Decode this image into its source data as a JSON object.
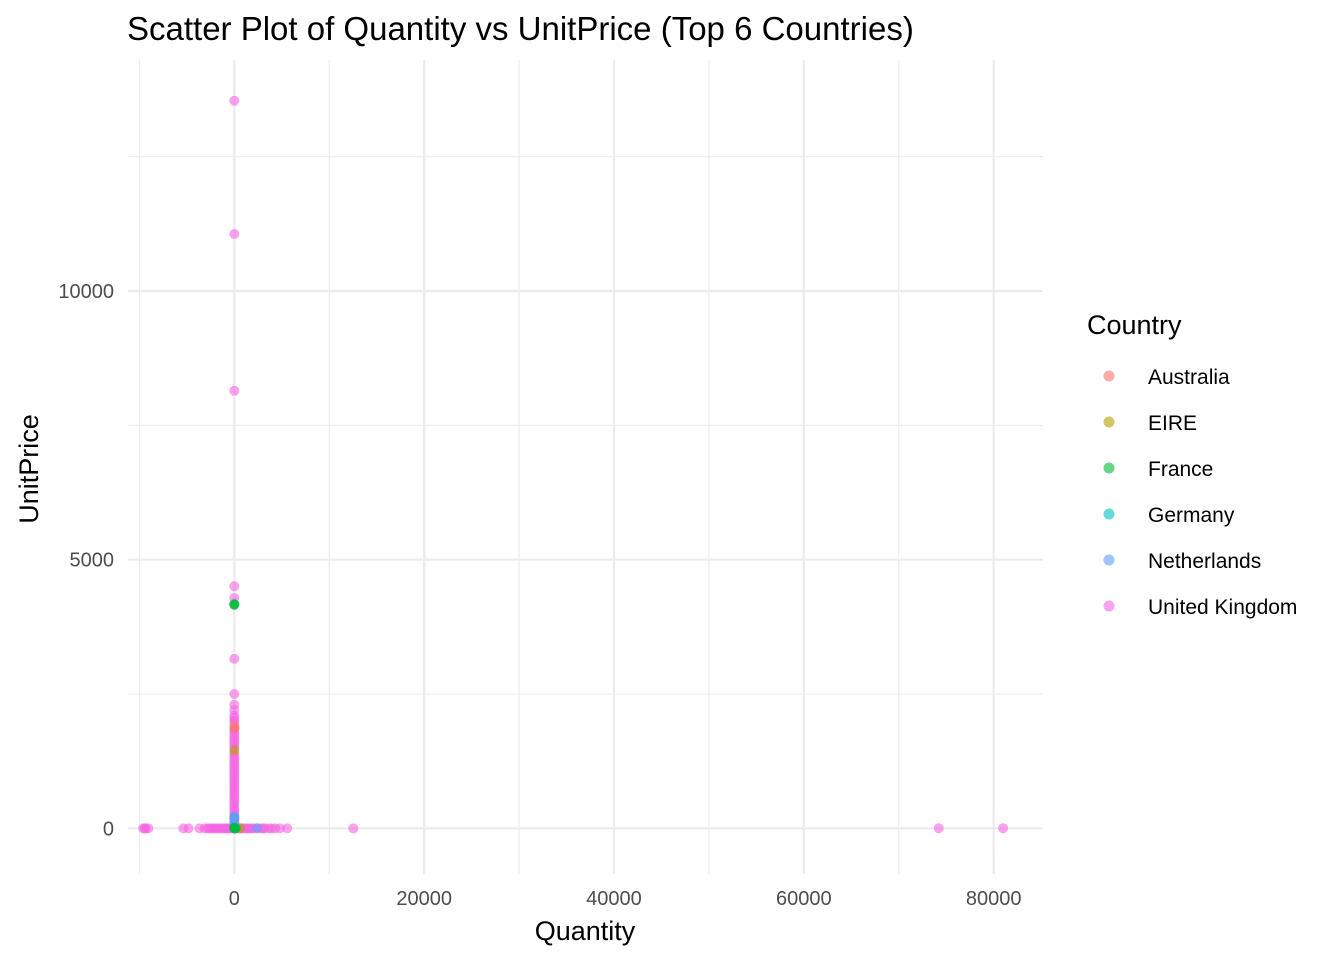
{
  "chart_data": {
    "type": "scatter",
    "title": "Scatter Plot of Quantity vs UnitPrice (Top 6 Countries)",
    "xlabel": "Quantity",
    "ylabel": "UnitPrice",
    "xlim": [
      -11200,
      85200
    ],
    "ylim": [
      -850,
      14300
    ],
    "x_major_ticks": [
      0,
      20000,
      40000,
      60000,
      80000
    ],
    "x_minor_ticks": [
      -10000,
      10000,
      30000,
      50000,
      70000
    ],
    "y_major_ticks": [
      0,
      5000,
      10000
    ],
    "y_minor_ticks": [
      2500,
      7500,
      12500
    ],
    "grid": true,
    "legend": {
      "title": "Country",
      "position": "right"
    },
    "point_opacity": 0.6,
    "series": [
      {
        "name": "Australia",
        "color": "#F8766D",
        "points": [
          [
            12,
            1900
          ],
          [
            24,
            1860
          ],
          [
            6,
            1.5
          ],
          [
            120,
            3
          ],
          [
            -24,
            2
          ],
          [
            48,
            10
          ]
        ]
      },
      {
        "name": "EIRE",
        "color": "#B79F00",
        "points": [
          [
            2,
            1450
          ],
          [
            24,
            1.8
          ],
          [
            -12,
            3
          ],
          [
            600,
            1
          ],
          [
            36,
            12
          ]
        ]
      },
      {
        "name": "France",
        "color": "#00BA38",
        "points": [
          [
            1,
            4161
          ],
          [
            -1,
            4161
          ],
          [
            2,
            4175
          ],
          [
            1,
            15
          ],
          [
            24,
            2
          ],
          [
            -6,
            5
          ],
          [
            150,
            1
          ]
        ]
      },
      {
        "name": "Germany",
        "color": "#00BFC4",
        "points": [
          [
            1,
            190
          ],
          [
            12,
            2.5
          ],
          [
            -3,
            5
          ],
          [
            48,
            1
          ],
          [
            96,
            0.8
          ]
        ]
      },
      {
        "name": "Netherlands",
        "color": "#619CFF",
        "points": [
          [
            1,
            220
          ],
          [
            1,
            120
          ],
          [
            2400,
            1
          ],
          [
            48,
            2
          ],
          [
            -12,
            4
          ],
          [
            4,
            60
          ]
        ]
      },
      {
        "name": "United Kingdom",
        "color": "#F564E3",
        "points": [
          [
            -1,
            13541
          ],
          [
            1,
            11062
          ],
          [
            1,
            8143
          ],
          [
            1,
            4505
          ],
          [
            -1,
            4287
          ],
          [
            1,
            3155
          ],
          [
            1,
            2500
          ],
          [
            1,
            2300
          ],
          [
            1,
            2200
          ],
          [
            1,
            2100
          ],
          [
            1,
            2050
          ],
          [
            1,
            2000
          ],
          [
            1,
            1950
          ],
          [
            1,
            1850
          ],
          [
            1,
            1800
          ],
          [
            1,
            1750
          ],
          [
            1,
            1700
          ],
          [
            1,
            1650
          ],
          [
            1,
            1600
          ],
          [
            1,
            1550
          ],
          [
            1,
            1500
          ],
          [
            1,
            1400
          ],
          [
            1,
            1350
          ],
          [
            1,
            1300
          ],
          [
            1,
            1250
          ],
          [
            1,
            1200
          ],
          [
            1,
            1150
          ],
          [
            1,
            1100
          ],
          [
            1,
            1050
          ],
          [
            1,
            1000
          ],
          [
            1,
            950
          ],
          [
            1,
            900
          ],
          [
            1,
            850
          ],
          [
            1,
            800
          ],
          [
            1,
            750
          ],
          [
            1,
            700
          ],
          [
            1,
            650
          ],
          [
            1,
            600
          ],
          [
            1,
            550
          ],
          [
            1,
            500
          ],
          [
            1,
            450
          ],
          [
            1,
            400
          ],
          [
            1,
            350
          ],
          [
            1,
            300
          ],
          [
            1,
            250
          ],
          [
            1,
            200
          ],
          [
            1,
            150
          ],
          [
            1,
            100
          ],
          [
            1,
            60
          ],
          [
            -1,
            30
          ],
          [
            1,
            20
          ],
          [
            -9600,
            0.03
          ],
          [
            -9400,
            0.1
          ],
          [
            -9360,
            0.2
          ],
          [
            -9058,
            0.05
          ],
          [
            -5368,
            0.1
          ],
          [
            -4830,
            0.1
          ],
          [
            -3667,
            0.2
          ],
          [
            -3114,
            0.1
          ],
          [
            -2800,
            0.1
          ],
          [
            -2600,
            0.1
          ],
          [
            -2400,
            0.2
          ],
          [
            -2200,
            0.1
          ],
          [
            -2000,
            0.1
          ],
          [
            -1800,
            0.2
          ],
          [
            -1600,
            0.1
          ],
          [
            -1400,
            0.1
          ],
          [
            -1200,
            0.2
          ],
          [
            -1000,
            0.1
          ],
          [
            -800,
            0.1
          ],
          [
            -600,
            0.2
          ],
          [
            -400,
            0.1
          ],
          [
            -200,
            0.1
          ],
          [
            200,
            0.5
          ],
          [
            400,
            0.3
          ],
          [
            600,
            0.2
          ],
          [
            800,
            0.3
          ],
          [
            1000,
            0.2
          ],
          [
            1200,
            0.1
          ],
          [
            1400,
            0.2
          ],
          [
            1600,
            0.3
          ],
          [
            1800,
            0.1
          ],
          [
            2000,
            0.2
          ],
          [
            2400,
            0.2
          ],
          [
            2800,
            0.1
          ],
          [
            3000,
            0.3
          ],
          [
            3186,
            0.1
          ],
          [
            3600,
            0.2
          ],
          [
            3906,
            0.1
          ],
          [
            4300,
            0.2
          ],
          [
            4800,
            0.1
          ],
          [
            5568,
            0.2
          ],
          [
            12540,
            0.1
          ],
          [
            74215,
            1.04
          ],
          [
            80995,
            2.08
          ]
        ]
      }
    ]
  }
}
